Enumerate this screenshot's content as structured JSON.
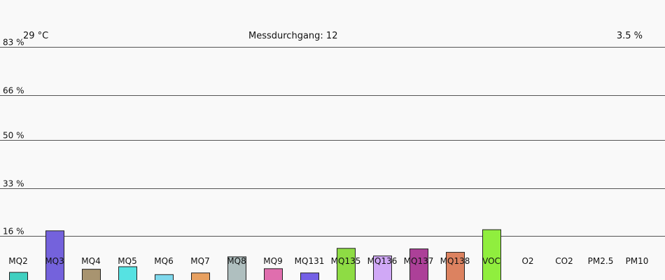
{
  "header": {
    "temperature": "29 °C",
    "run_label": "Messdurchgang: 12",
    "humidity": "3.5 %"
  },
  "chart_data": {
    "type": "bar",
    "title": "",
    "xlabel": "",
    "ylabel": "",
    "ylim": [
      0,
      83
    ],
    "yticks": [
      16,
      33,
      50,
      66,
      83
    ],
    "ytick_labels": [
      "16 %",
      "33 %",
      "50 %",
      "66 %",
      "83 %"
    ],
    "grid": true,
    "categories": [
      "MQ2",
      "MQ3",
      "MQ4",
      "MQ5",
      "MQ6",
      "MQ7",
      "MQ8",
      "MQ9",
      "MQ131",
      "MQ135",
      "MQ136",
      "MQ137",
      "MQ138",
      "VOC",
      "O2",
      "CO2",
      "PM2.5",
      "PM10"
    ],
    "values": [
      3.2,
      17.9,
      4.3,
      5.2,
      2.4,
      3.0,
      8.7,
      4.5,
      3.0,
      11.7,
      9.0,
      11.5,
      10.3,
      18.3,
      0,
      0,
      0,
      0
    ],
    "colors": [
      "#40d0c0",
      "#7462dc",
      "#a89470",
      "#56e2e2",
      "#7ed8ec",
      "#e8a060",
      "#afbfbf",
      "#e06eae",
      "#7460e6",
      "#8edc44",
      "#d0a8f6",
      "#ac4098",
      "#dc8260",
      "#90ee3e",
      "#999999",
      "#999999",
      "#999999",
      "#999999"
    ]
  }
}
